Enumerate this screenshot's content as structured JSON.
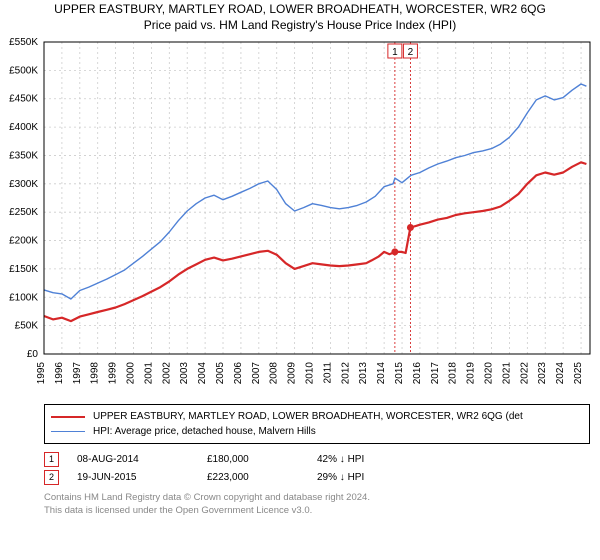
{
  "title_line1": "UPPER EASTBURY, MARTLEY ROAD, LOWER BROADHEATH, WORCESTER, WR2 6QG",
  "title_line2": "Price paid vs. HM Land Registry's House Price Index (HPI)",
  "chart": {
    "type": "line",
    "background_color": "#ffffff",
    "plot_border_color": "#000000",
    "grid_color": "#cccccc",
    "grid_dash": "2,3",
    "x_tick_font": 10,
    "y_tick_font": 10,
    "ylim": [
      0,
      550000
    ],
    "y_ticks": [
      0,
      50000,
      100000,
      150000,
      200000,
      250000,
      300000,
      350000,
      400000,
      450000,
      500000,
      550000
    ],
    "y_tick_labels": [
      "£0",
      "£50K",
      "£100K",
      "£150K",
      "£200K",
      "£250K",
      "£300K",
      "£350K",
      "£400K",
      "£450K",
      "£500K",
      "£550K"
    ],
    "x_years": [
      1995,
      1996,
      1997,
      1998,
      1999,
      2000,
      2001,
      2002,
      2003,
      2004,
      2005,
      2006,
      2007,
      2008,
      2009,
      2010,
      2011,
      2012,
      2013,
      2014,
      2015,
      2016,
      2017,
      2018,
      2019,
      2020,
      2021,
      2022,
      2023,
      2024,
      2025
    ],
    "series": [
      {
        "name": "property",
        "label": "UPPER EASTBURY, MARTLEY ROAD, LOWER BROADHEATH, WORCESTER, WR2 6QG (det",
        "color": "#d62728",
        "line_width": 2.2,
        "data": [
          [
            1995.0,
            67000
          ],
          [
            1995.5,
            61000
          ],
          [
            1996.0,
            64000
          ],
          [
            1996.5,
            58000
          ],
          [
            1997.0,
            66000
          ],
          [
            1997.5,
            70000
          ],
          [
            1998.0,
            74000
          ],
          [
            1998.5,
            78000
          ],
          [
            1999.0,
            82000
          ],
          [
            1999.5,
            88000
          ],
          [
            2000.0,
            95000
          ],
          [
            2000.5,
            102000
          ],
          [
            2001.0,
            110000
          ],
          [
            2001.5,
            118000
          ],
          [
            2002.0,
            128000
          ],
          [
            2002.5,
            140000
          ],
          [
            2003.0,
            150000
          ],
          [
            2003.5,
            158000
          ],
          [
            2004.0,
            166000
          ],
          [
            2004.5,
            170000
          ],
          [
            2005.0,
            165000
          ],
          [
            2005.5,
            168000
          ],
          [
            2006.0,
            172000
          ],
          [
            2006.5,
            176000
          ],
          [
            2007.0,
            180000
          ],
          [
            2007.5,
            182000
          ],
          [
            2008.0,
            175000
          ],
          [
            2008.5,
            160000
          ],
          [
            2009.0,
            150000
          ],
          [
            2009.5,
            155000
          ],
          [
            2010.0,
            160000
          ],
          [
            2010.5,
            158000
          ],
          [
            2011.0,
            156000
          ],
          [
            2011.5,
            155000
          ],
          [
            2012.0,
            156000
          ],
          [
            2012.5,
            158000
          ],
          [
            2013.0,
            160000
          ],
          [
            2013.3,
            165000
          ],
          [
            2013.7,
            172000
          ],
          [
            2014.0,
            180000
          ],
          [
            2014.3,
            176000
          ],
          [
            2014.6,
            180000
          ],
          [
            2015.0,
            180000
          ],
          [
            2015.2,
            178000
          ],
          [
            2015.47,
            223000
          ],
          [
            2015.8,
            226000
          ],
          [
            2016.0,
            228000
          ],
          [
            2016.5,
            232000
          ],
          [
            2017.0,
            237000
          ],
          [
            2017.5,
            240000
          ],
          [
            2018.0,
            245000
          ],
          [
            2018.5,
            248000
          ],
          [
            2019.0,
            250000
          ],
          [
            2019.5,
            252000
          ],
          [
            2020.0,
            255000
          ],
          [
            2020.5,
            260000
          ],
          [
            2021.0,
            270000
          ],
          [
            2021.5,
            282000
          ],
          [
            2022.0,
            300000
          ],
          [
            2022.5,
            315000
          ],
          [
            2023.0,
            320000
          ],
          [
            2023.5,
            316000
          ],
          [
            2024.0,
            320000
          ],
          [
            2024.5,
            330000
          ],
          [
            2025.0,
            338000
          ],
          [
            2025.3,
            335000
          ]
        ]
      },
      {
        "name": "hpi",
        "label": "HPI: Average price, detached house, Malvern Hills",
        "color": "#4f81d6",
        "line_width": 1.4,
        "data": [
          [
            1995.0,
            113000
          ],
          [
            1995.5,
            108000
          ],
          [
            1996.0,
            106000
          ],
          [
            1996.5,
            97000
          ],
          [
            1997.0,
            112000
          ],
          [
            1997.5,
            118000
          ],
          [
            1998.0,
            125000
          ],
          [
            1998.5,
            132000
          ],
          [
            1999.0,
            140000
          ],
          [
            1999.5,
            148000
          ],
          [
            2000.0,
            160000
          ],
          [
            2000.5,
            172000
          ],
          [
            2001.0,
            185000
          ],
          [
            2001.5,
            198000
          ],
          [
            2002.0,
            215000
          ],
          [
            2002.5,
            235000
          ],
          [
            2003.0,
            252000
          ],
          [
            2003.5,
            265000
          ],
          [
            2004.0,
            275000
          ],
          [
            2004.5,
            280000
          ],
          [
            2005.0,
            272000
          ],
          [
            2005.5,
            278000
          ],
          [
            2006.0,
            285000
          ],
          [
            2006.5,
            292000
          ],
          [
            2007.0,
            300000
          ],
          [
            2007.5,
            305000
          ],
          [
            2008.0,
            290000
          ],
          [
            2008.5,
            265000
          ],
          [
            2009.0,
            252000
          ],
          [
            2009.5,
            258000
          ],
          [
            2010.0,
            265000
          ],
          [
            2010.5,
            262000
          ],
          [
            2011.0,
            258000
          ],
          [
            2011.5,
            256000
          ],
          [
            2012.0,
            258000
          ],
          [
            2012.5,
            262000
          ],
          [
            2013.0,
            268000
          ],
          [
            2013.5,
            278000
          ],
          [
            2014.0,
            295000
          ],
          [
            2014.5,
            300000
          ],
          [
            2014.6,
            310000
          ],
          [
            2015.0,
            302000
          ],
          [
            2015.5,
            315000
          ],
          [
            2016.0,
            320000
          ],
          [
            2016.5,
            328000
          ],
          [
            2017.0,
            335000
          ],
          [
            2017.5,
            340000
          ],
          [
            2018.0,
            346000
          ],
          [
            2018.5,
            350000
          ],
          [
            2019.0,
            355000
          ],
          [
            2019.5,
            358000
          ],
          [
            2020.0,
            362000
          ],
          [
            2020.5,
            370000
          ],
          [
            2021.0,
            382000
          ],
          [
            2021.5,
            400000
          ],
          [
            2022.0,
            425000
          ],
          [
            2022.5,
            448000
          ],
          [
            2023.0,
            455000
          ],
          [
            2023.5,
            448000
          ],
          [
            2024.0,
            452000
          ],
          [
            2024.5,
            465000
          ],
          [
            2025.0,
            476000
          ],
          [
            2025.3,
            472000
          ]
        ]
      }
    ],
    "sale_markers": [
      {
        "id": "1",
        "x": 2014.6,
        "y": 180000,
        "color": "#d62728"
      },
      {
        "id": "2",
        "x": 2015.47,
        "y": 223000,
        "color": "#d62728"
      }
    ],
    "callout_boxes": [
      {
        "id": "1",
        "x": 2014.6,
        "label": "1",
        "border": "#d62728"
      },
      {
        "id": "2",
        "x": 2015.47,
        "label": "2",
        "border": "#d62728"
      }
    ]
  },
  "legend": {
    "items": [
      {
        "color": "#d62728",
        "width": 2.2,
        "text": "UPPER EASTBURY, MARTLEY ROAD, LOWER BROADHEATH, WORCESTER, WR2 6QG (det"
      },
      {
        "color": "#4f81d6",
        "width": 1.4,
        "text": "HPI: Average price, detached house, Malvern Hills"
      }
    ]
  },
  "sales": [
    {
      "id": "1",
      "border": "#d62728",
      "date": "08-AUG-2014",
      "price": "£180,000",
      "delta": "42% ↓ HPI"
    },
    {
      "id": "2",
      "border": "#d62728",
      "date": "19-JUN-2015",
      "price": "£223,000",
      "delta": "29% ↓ HPI"
    }
  ],
  "footer_line1": "Contains HM Land Registry data © Crown copyright and database right 2024.",
  "footer_line2": "This data is licensed under the Open Government Licence v3.0."
}
